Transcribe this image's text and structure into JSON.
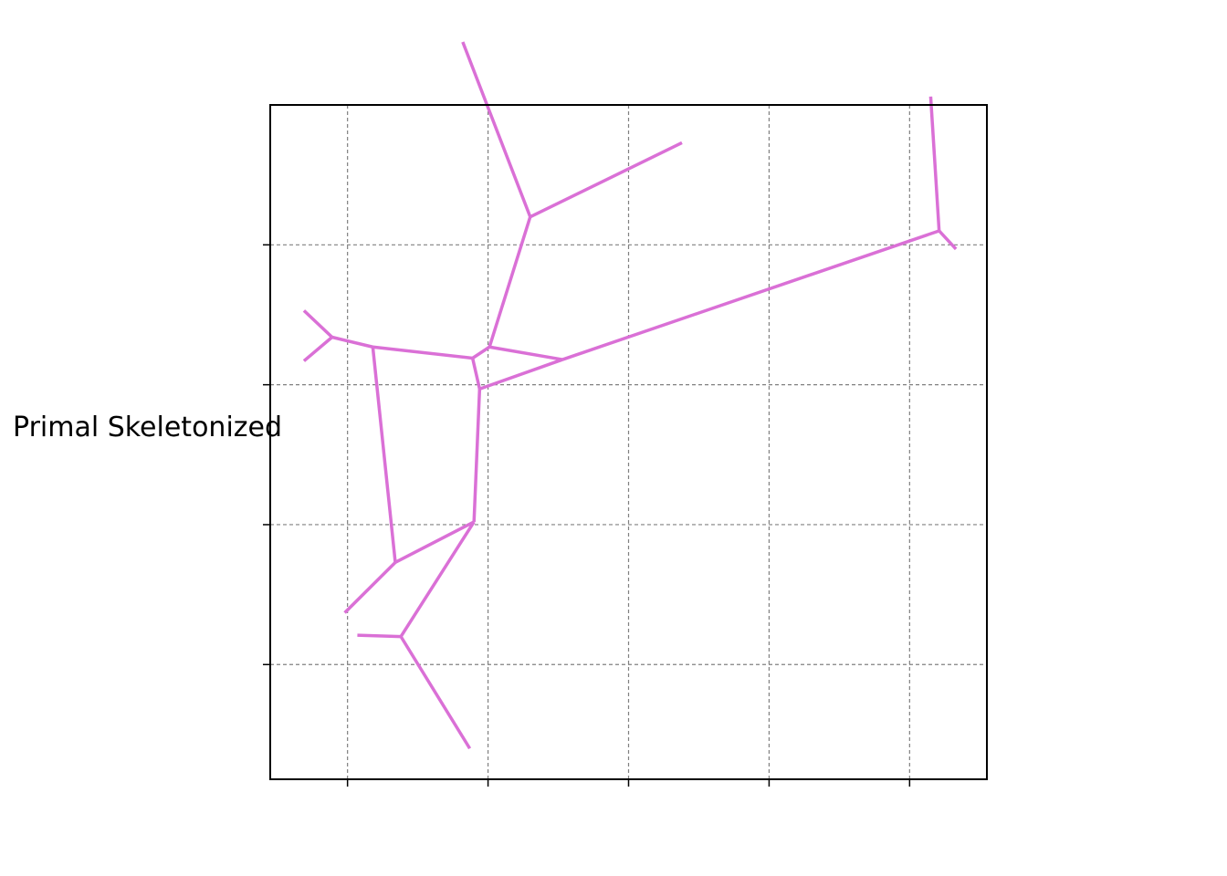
{
  "figure": {
    "ylabel": "Primal Skeletonized",
    "grid": true,
    "tick_labels_shown": false
  },
  "colors": {
    "edge": "#da70d6",
    "grid": "#808080",
    "axes": "#000000",
    "background": "#ffffff"
  },
  "chart_data": {
    "type": "network",
    "xlim": [
      -0.55,
      4.55
    ],
    "ylim": [
      -0.82,
      4.0
    ],
    "xticks": [
      0,
      1,
      2,
      3,
      4
    ],
    "yticks": [
      0,
      1,
      2,
      3
    ],
    "nodes": [
      {
        "id": "n1",
        "x": -0.11,
        "y": 2.34
      },
      {
        "id": "n2",
        "x": 0.18,
        "y": 2.27
      },
      {
        "id": "n3",
        "x": 0.89,
        "y": 2.19
      },
      {
        "id": "n4",
        "x": 1.01,
        "y": 2.27
      },
      {
        "id": "n5",
        "x": 0.94,
        "y": 1.97
      },
      {
        "id": "n6",
        "x": 0.9,
        "y": 1.02
      },
      {
        "id": "n7",
        "x": 0.34,
        "y": 0.73
      },
      {
        "id": "n8",
        "x": 0.38,
        "y": 0.2
      },
      {
        "id": "n9",
        "x": 1.3,
        "y": 3.2
      },
      {
        "id": "n10",
        "x": 1.53,
        "y": 2.18
      },
      {
        "id": "n11",
        "x": 4.21,
        "y": 3.1
      },
      {
        "id": "e1",
        "x": -0.31,
        "y": 2.53
      },
      {
        "id": "e2",
        "x": -0.31,
        "y": 2.17
      },
      {
        "id": "e3",
        "x": 0.82,
        "y": 4.45
      },
      {
        "id": "e4",
        "x": 2.38,
        "y": 3.73
      },
      {
        "id": "e5",
        "x": 4.15,
        "y": 4.06
      },
      {
        "id": "e6",
        "x": 4.33,
        "y": 2.97
      },
      {
        "id": "e7",
        "x": -0.02,
        "y": 0.37
      },
      {
        "id": "e8",
        "x": 0.07,
        "y": 0.21
      },
      {
        "id": "e9",
        "x": 0.87,
        "y": -0.6
      }
    ],
    "edges": [
      [
        "e1",
        "n1"
      ],
      [
        "e2",
        "n1"
      ],
      [
        "n1",
        "n2"
      ],
      [
        "n2",
        "n3"
      ],
      [
        "n3",
        "n4"
      ],
      [
        "n3",
        "n5"
      ],
      [
        "n4",
        "n9"
      ],
      [
        "n9",
        "e3"
      ],
      [
        "n9",
        "e4"
      ],
      [
        "n4",
        "n10"
      ],
      [
        "n5",
        "n10"
      ],
      [
        "n10",
        "n11"
      ],
      [
        "n11",
        "e5"
      ],
      [
        "n11",
        "e6"
      ],
      [
        "n5",
        "n6"
      ],
      [
        "n2",
        "n7"
      ],
      [
        "n7",
        "n6"
      ],
      [
        "n7",
        "e7"
      ],
      [
        "n6",
        "n8"
      ],
      [
        "n8",
        "e8"
      ],
      [
        "n8",
        "e9"
      ]
    ]
  }
}
